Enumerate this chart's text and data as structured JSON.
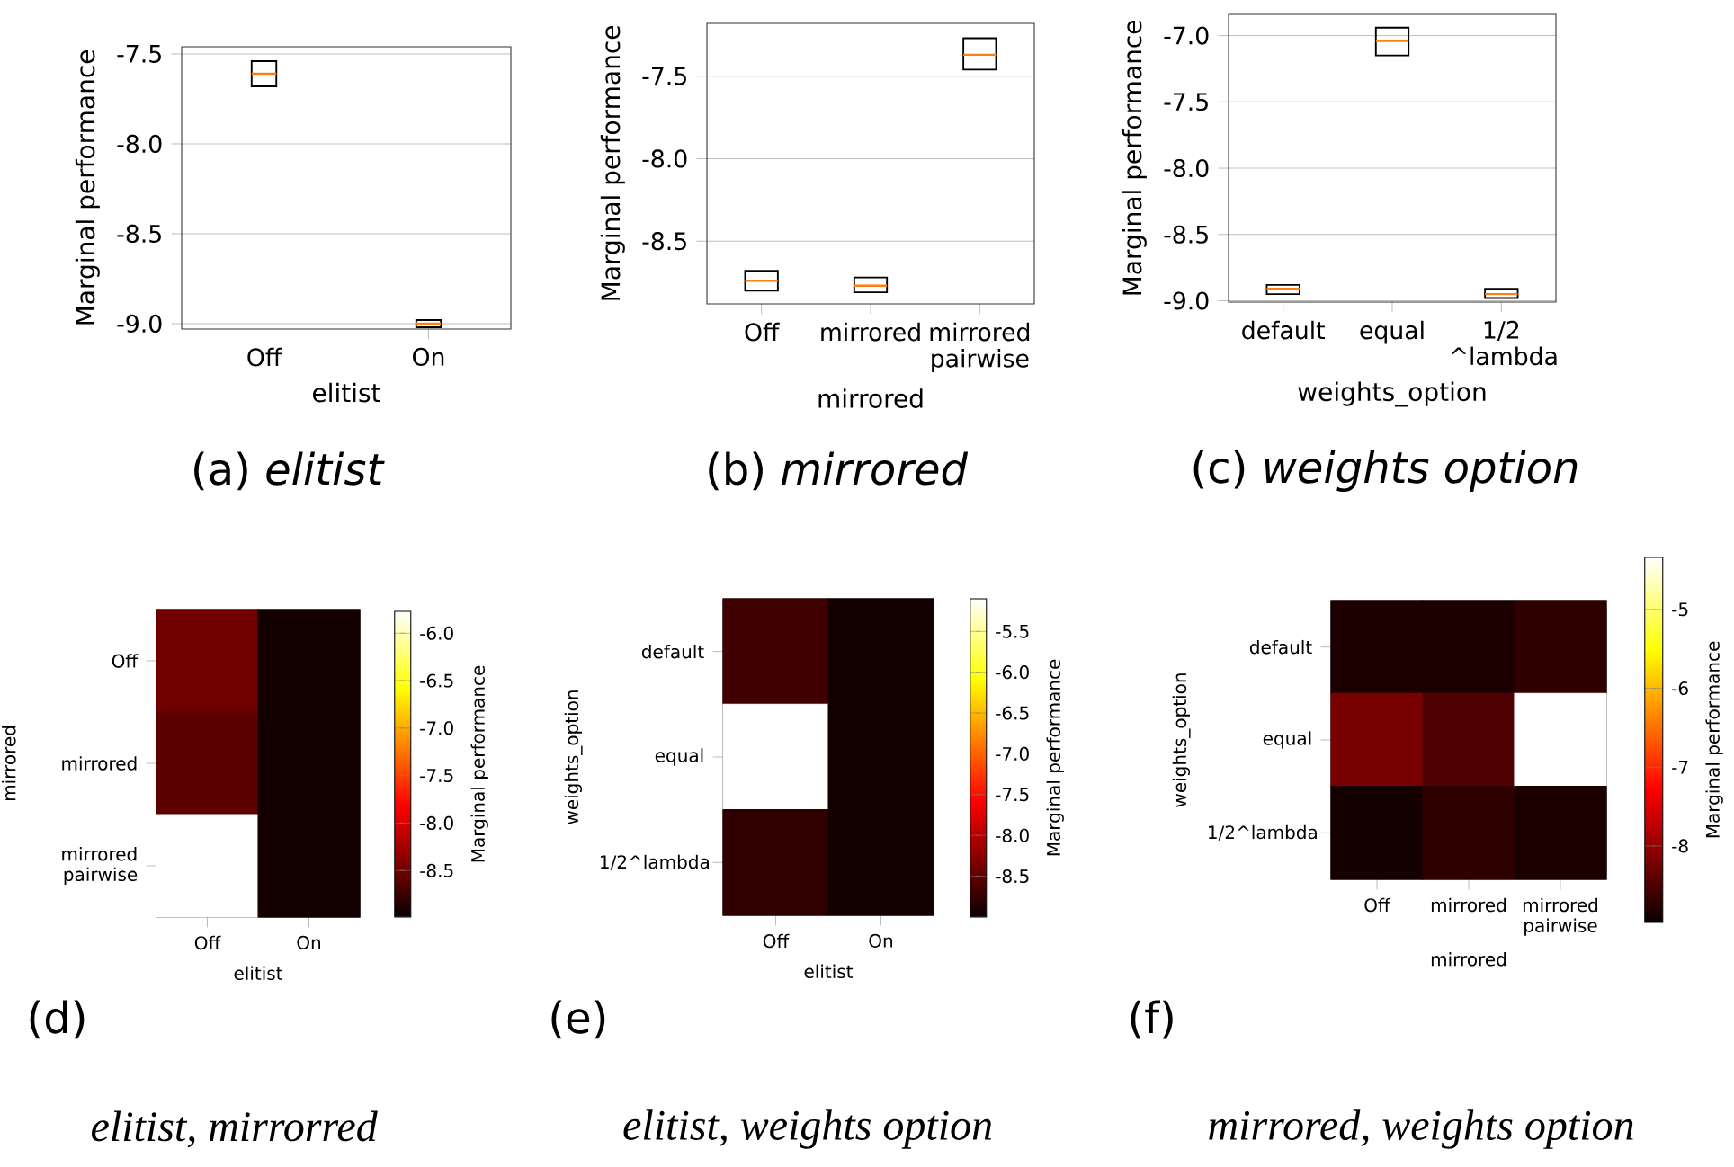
{
  "chart_data": [
    {
      "type": "box",
      "title": "(a) *elitist*",
      "categories": [
        "Off",
        "On"
      ],
      "xlabel": "elitist",
      "ylabel": "Marginal performance",
      "ylim": [
        -9.03,
        -7.46
      ],
      "yticks": [
        {
          "value": -9,
          "label": "-9.0"
        },
        {
          "value": -8.5,
          "label": "-8.5"
        },
        {
          "value": -8,
          "label": "-8.0"
        },
        {
          "value": -7.5,
          "label": "-7.5"
        }
      ],
      "grid": "y",
      "boxes": [
        {
          "low": -7.68,
          "q1": -7.68,
          "median": -7.61,
          "q3": -7.54,
          "high": -7.54
        },
        {
          "low": -9.02,
          "q1": -9.02,
          "median": -9.0,
          "q3": -8.98,
          "high": -8.98
        }
      ]
    },
    {
      "type": "box",
      "title": "(b) *mirrored*",
      "categories": [
        "Off",
        "mirrored",
        "mirrored pairwise"
      ],
      "xlabel": "mirrored",
      "ylabel": "Marginal performance",
      "ylim": [
        -8.88,
        -7.18
      ],
      "yticks": [
        {
          "value": -8.5,
          "label": "-8.5"
        },
        {
          "value": -8,
          "label": "-8.0"
        },
        {
          "value": -7.5,
          "label": "-7.5"
        }
      ],
      "grid": "y",
      "boxes": [
        {
          "low": -8.8,
          "q1": -8.8,
          "median": -8.74,
          "q3": -8.68,
          "high": -8.68
        },
        {
          "low": -8.81,
          "q1": -8.81,
          "median": -8.77,
          "q3": -8.72,
          "high": -8.72
        },
        {
          "low": -7.46,
          "q1": -7.46,
          "median": -7.37,
          "q3": -7.27,
          "high": -7.27
        }
      ]
    },
    {
      "type": "box",
      "title": "(c) *weights option*",
      "categories": [
        "default",
        "equal",
        "1/2 ^lambda"
      ],
      "xlabel": "weights_option",
      "ylabel": "Marginal performance",
      "ylim": [
        -9.01,
        -6.84
      ],
      "yticks": [
        {
          "value": -9,
          "label": "-9.0"
        },
        {
          "value": -8.5,
          "label": "-8.5"
        },
        {
          "value": -8,
          "label": "-8.0"
        },
        {
          "value": -7.5,
          "label": "-7.5"
        },
        {
          "value": -7,
          "label": "-7.0"
        }
      ],
      "grid": "y",
      "boxes": [
        {
          "low": -8.95,
          "q1": -8.95,
          "median": -8.91,
          "q3": -8.88,
          "high": -8.88
        },
        {
          "low": -7.15,
          "q1": -7.15,
          "median": -7.04,
          "q3": -6.94,
          "high": -6.94
        },
        {
          "low": -8.98,
          "q1": -8.98,
          "median": -8.95,
          "q3": -8.91,
          "high": -8.91
        }
      ]
    },
    {
      "type": "heatmap",
      "title": "(d)",
      "subtitle": "elitist, mirrorred",
      "categories": [
        "Off",
        "On"
      ],
      "y_categories": [
        "Off",
        "mirrored",
        "mirrored pairwise"
      ],
      "xlabel": "elitist",
      "ylabel": "mirrored",
      "clabel": "Marginal performance",
      "clim": [
        -8.99,
        -5.77
      ],
      "cticks": [
        {
          "value": -8.5,
          "label": "-8.5"
        },
        {
          "value": -8,
          "label": "-8.0"
        },
        {
          "value": -7.5,
          "label": "-7.5"
        },
        {
          "value": -7,
          "label": "-7.0"
        },
        {
          "value": -6.5,
          "label": "-6.5"
        },
        {
          "value": -6,
          "label": "-6.0"
        }
      ],
      "cells": [
        [
          -8.5,
          -8.95
        ],
        [
          -8.6,
          -8.95
        ],
        [
          -5.77,
          -8.95
        ]
      ]
    },
    {
      "type": "heatmap",
      "title": "(e)",
      "subtitle": "elitist, weights option",
      "categories": [
        "Off",
        "On"
      ],
      "y_categories": [
        "default",
        "equal",
        "1/2^lambda"
      ],
      "xlabel": "elitist",
      "ylabel": "weights_option",
      "clabel": "Marginal performance",
      "clim": [
        -9.0,
        -5.1
      ],
      "cticks": [
        {
          "value": -8.5,
          "label": "-8.5"
        },
        {
          "value": -8,
          "label": "-8.0"
        },
        {
          "value": -7.5,
          "label": "-7.5"
        },
        {
          "value": -7,
          "label": "-7.0"
        },
        {
          "value": -6.5,
          "label": "-6.5"
        },
        {
          "value": -6,
          "label": "-6.0"
        },
        {
          "value": -5.5,
          "label": "-5.5"
        }
      ],
      "cells": [
        [
          -8.69,
          -8.95
        ],
        [
          -5.1,
          -8.95
        ],
        [
          -8.78,
          -8.95
        ]
      ]
    },
    {
      "type": "heatmap",
      "title": "(f)",
      "subtitle": "mirrored, weights option",
      "categories": [
        "Off",
        "mirrored",
        "mirrored pairwise"
      ],
      "y_categories": [
        "default",
        "equal",
        "1/2^lambda"
      ],
      "xlabel": "mirrored",
      "ylabel": "weights_option",
      "clabel": "Marginal performance",
      "clim": [
        -8.97,
        -4.34
      ],
      "cticks": [
        -8,
        -7,
        -6,
        -5
      ],
      "cells": [
        [
          -8.85,
          -8.85,
          -8.72
        ],
        [
          -8.21,
          -8.5,
          -4.34
        ],
        [
          -8.9,
          -8.72,
          -8.85
        ]
      ]
    }
  ]
}
